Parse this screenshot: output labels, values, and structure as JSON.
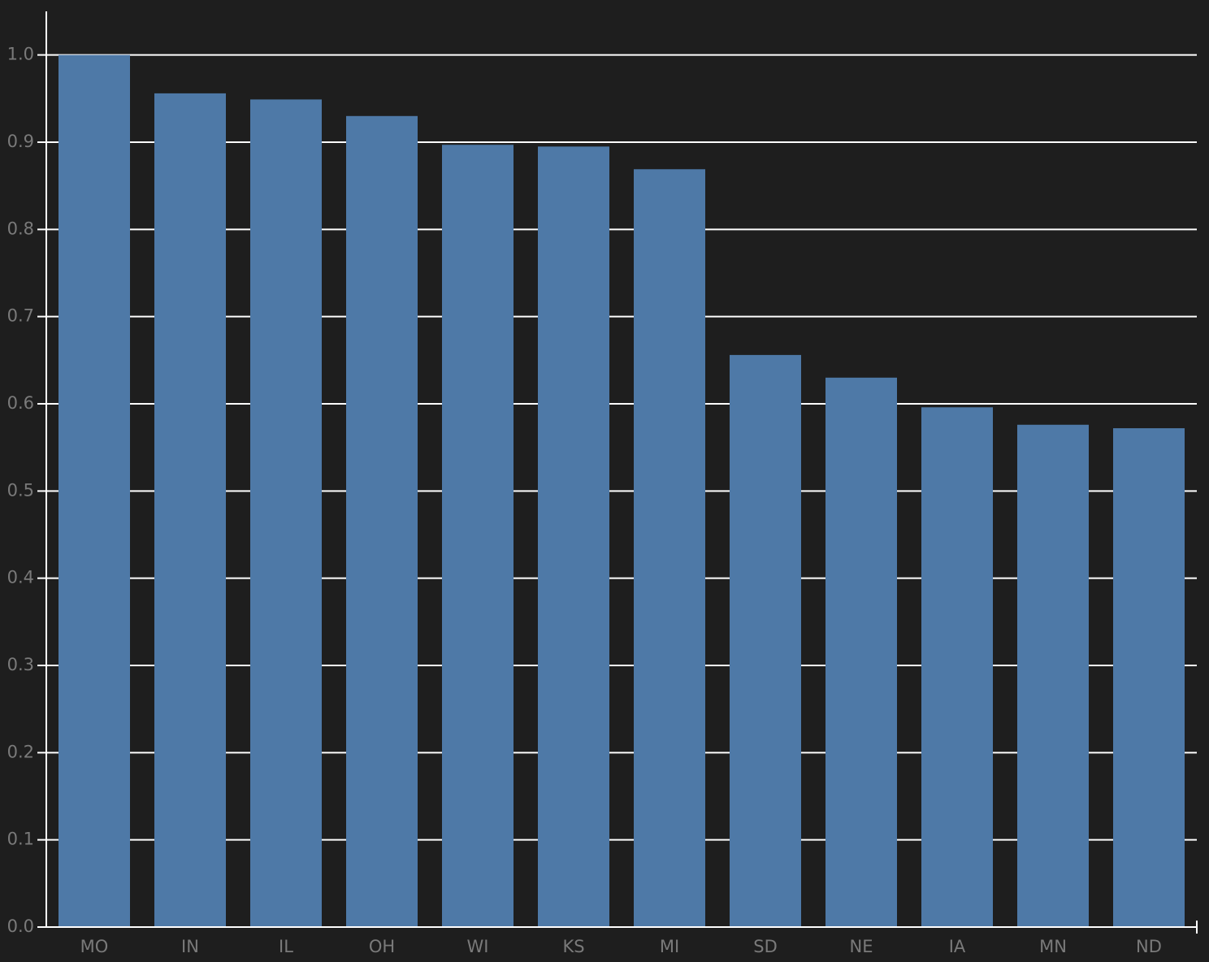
{
  "chart_data": {
    "type": "bar",
    "categories": [
      "MO",
      "IN",
      "IL",
      "OH",
      "WI",
      "KS",
      "MI",
      "SD",
      "NE",
      "IA",
      "MN",
      "ND"
    ],
    "values": [
      1.0,
      0.956,
      0.949,
      0.93,
      0.897,
      0.895,
      0.869,
      0.656,
      0.63,
      0.596,
      0.576,
      0.572
    ],
    "color": "#4e79a7",
    "ylim": [
      0,
      1.05
    ],
    "yticks": [
      {
        "value": 0,
        "label": "0.0"
      },
      0.1,
      0.2,
      0.3,
      0.4,
      0.5,
      0.6,
      0.7,
      0.8,
      0.9,
      {
        "value": 1,
        "label": "1.0"
      }
    ],
    "grid": true
  }
}
